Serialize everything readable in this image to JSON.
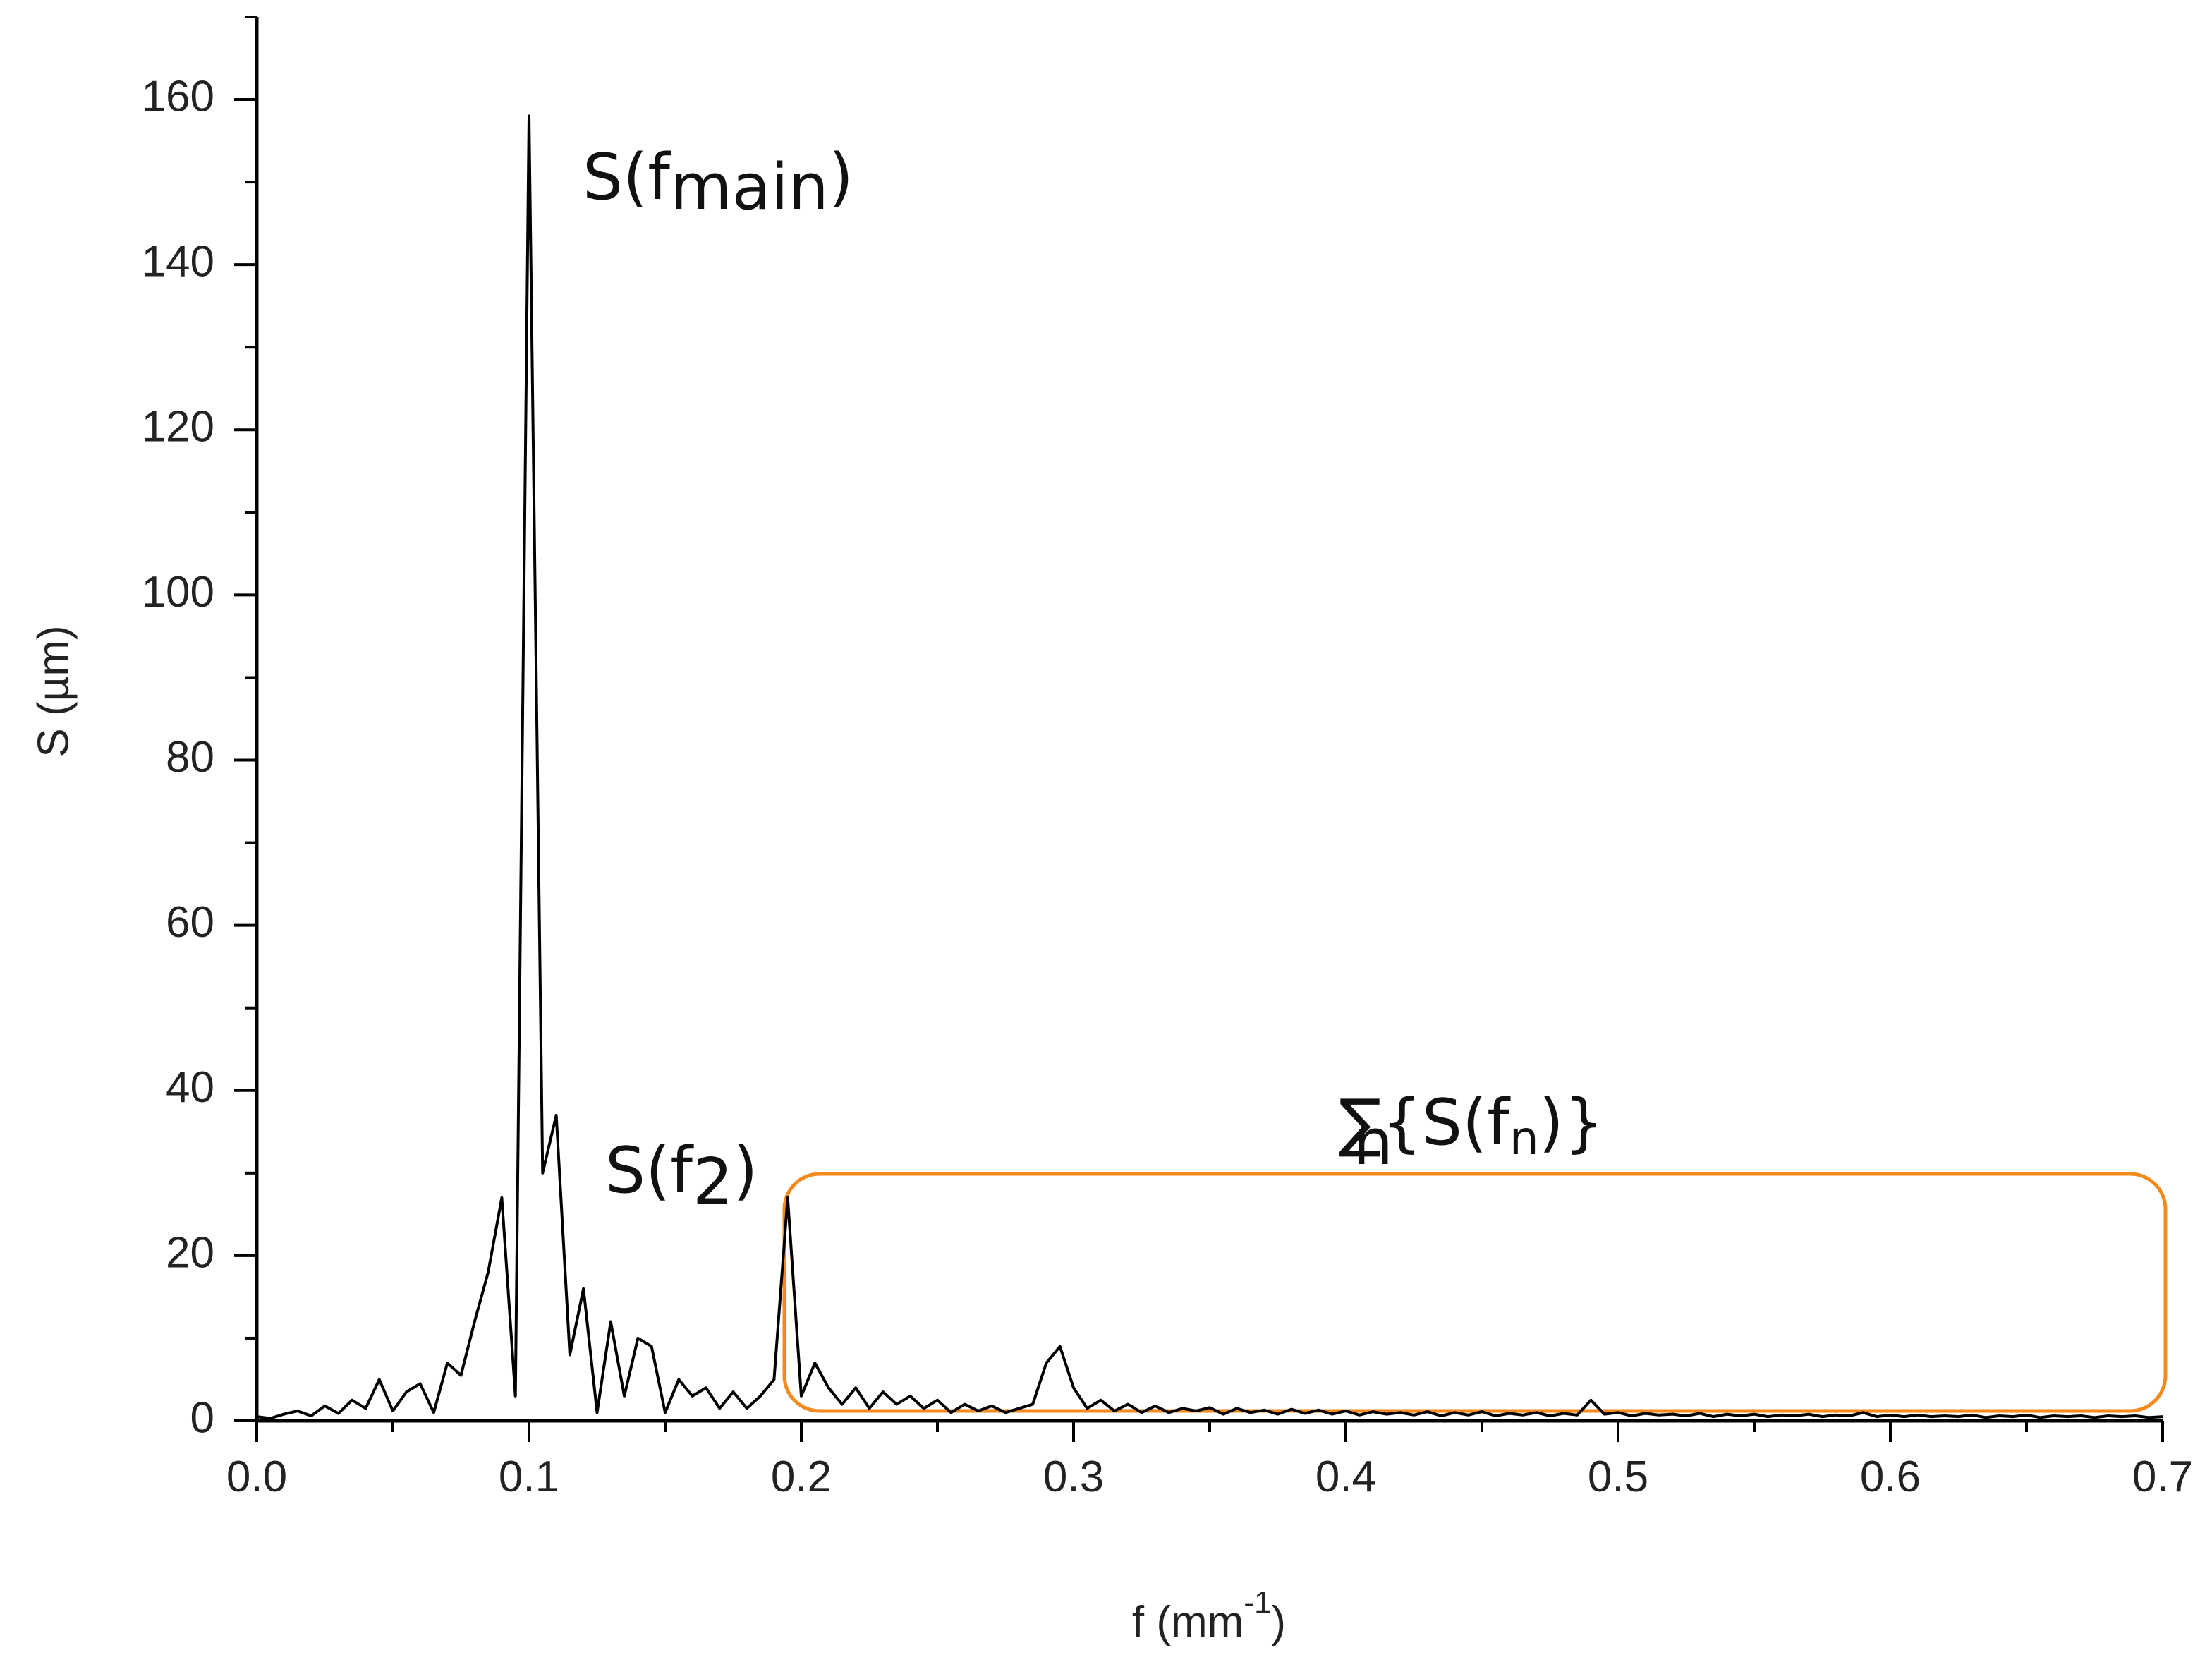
{
  "chart_data": {
    "type": "line",
    "y_label": "S (µm)",
    "x_label": {
      "text": "f (mm",
      "sup": "-1",
      "end": ")"
    },
    "annotations": [
      {
        "text": "S(f",
        "sub": "main",
        "end": ")"
      },
      {
        "text": "S(f",
        "sub": "2",
        "end": ")"
      },
      {
        "symbol": "∑",
        "symbol_sub": "n",
        "text": "{S(f",
        "sub": "n",
        "end": ")}",
        "color": "#f28a1e"
      }
    ],
    "color": "#000000",
    "xlim": [
      0,
      0.7
    ],
    "ylim": [
      0,
      170
    ],
    "xticks": [
      {
        "value": 0,
        "label": "0.0"
      },
      0.1,
      0.2,
      0.3,
      0.4,
      0.5,
      0.6,
      0.7
    ],
    "yticks": [
      0,
      20,
      40,
      60,
      80,
      100,
      120,
      140,
      160
    ],
    "xminorticks": [
      0.05,
      0.15,
      0.25,
      0.35,
      0.45,
      0.55,
      0.65
    ],
    "yminorticks": [
      10,
      30,
      50,
      70,
      90,
      110,
      130,
      150,
      170
    ],
    "x": [
      0,
      0.005,
      0.01,
      0.015,
      0.02,
      0.025,
      0.03,
      0.035,
      0.04,
      0.045,
      0.05,
      0.055,
      0.06,
      0.065,
      0.07,
      0.075,
      0.08,
      0.085,
      0.09,
      0.095,
      0.1,
      0.105,
      0.11,
      0.115,
      0.12,
      0.125,
      0.13,
      0.135,
      0.14,
      0.145,
      0.15,
      0.155,
      0.16,
      0.165,
      0.17,
      0.175,
      0.18,
      0.185,
      0.19,
      0.195,
      0.2,
      0.205,
      0.21,
      0.215,
      0.22,
      0.225,
      0.23,
      0.235,
      0.24,
      0.245,
      0.25,
      0.255,
      0.26,
      0.265,
      0.27,
      0.275,
      0.28,
      0.285,
      0.29,
      0.295,
      0.3,
      0.305,
      0.31,
      0.315,
      0.32,
      0.325,
      0.33,
      0.335,
      0.34,
      0.345,
      0.35,
      0.355,
      0.36,
      0.365,
      0.37,
      0.375,
      0.38,
      0.385,
      0.39,
      0.395,
      0.4,
      0.405,
      0.41,
      0.415,
      0.42,
      0.425,
      0.43,
      0.435,
      0.44,
      0.445,
      0.45,
      0.455,
      0.46,
      0.465,
      0.47,
      0.475,
      0.48,
      0.485,
      0.49,
      0.495,
      0.5,
      0.505,
      0.51,
      0.515,
      0.52,
      0.525,
      0.53,
      0.535,
      0.54,
      0.545,
      0.55,
      0.555,
      0.56,
      0.565,
      0.57,
      0.575,
      0.58,
      0.585,
      0.59,
      0.595,
      0.6,
      0.605,
      0.61,
      0.615,
      0.62,
      0.625,
      0.63,
      0.635,
      0.64,
      0.645,
      0.65,
      0.655,
      0.66,
      0.665,
      0.67,
      0.675,
      0.68,
      0.685,
      0.69,
      0.695,
      0.7
    ],
    "values": [
      0.5,
      0.3,
      0.8,
      1.2,
      0.6,
      1.8,
      0.9,
      2.5,
      1.5,
      5,
      1.2,
      3.5,
      4.5,
      1,
      7,
      5.5,
      12,
      18,
      27,
      3,
      158,
      30,
      37,
      8,
      16,
      1,
      12,
      3,
      10,
      9,
      1,
      5,
      3,
      4,
      1.5,
      3.5,
      1.5,
      3,
      5,
      27,
      3,
      7,
      4,
      2,
      4,
      1.5,
      3.5,
      2,
      3,
      1.5,
      2.5,
      1,
      2,
      1.2,
      1.8,
      1,
      1.5,
      2,
      7,
      9,
      4,
      1.5,
      2.5,
      1.2,
      2,
      1,
      1.8,
      1,
      1.5,
      1.2,
      1.6,
      0.8,
      1.5,
      1,
      1.3,
      0.8,
      1.4,
      0.9,
      1.3,
      0.8,
      1.2,
      0.7,
      1.1,
      0.8,
      1,
      0.7,
      1.1,
      0.6,
      1,
      0.7,
      1.1,
      0.6,
      0.9,
      0.7,
      1,
      0.6,
      0.9,
      0.7,
      2.5,
      0.8,
      1,
      0.6,
      0.9,
      0.7,
      0.8,
      0.6,
      0.9,
      0.5,
      0.8,
      0.6,
      0.8,
      0.5,
      0.7,
      0.6,
      0.8,
      0.5,
      0.7,
      0.6,
      1,
      0.5,
      0.7,
      0.5,
      0.7,
      0.5,
      0.6,
      0.5,
      0.7,
      0.4,
      0.6,
      0.5,
      0.7,
      0.4,
      0.6,
      0.5,
      0.6,
      0.4,
      0.6,
      0.5,
      0.6,
      0.4,
      0.5
    ]
  }
}
